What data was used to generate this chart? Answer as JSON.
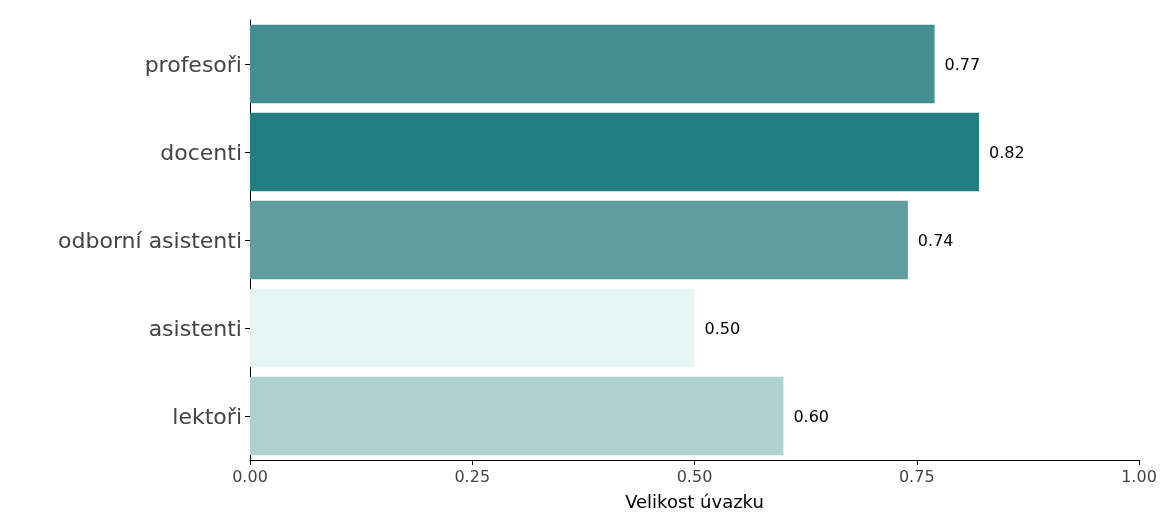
{
  "chart_data": {
    "type": "bar",
    "orientation": "horizontal",
    "xlabel": "Velikost úvazku",
    "categories": [
      "profesoři",
      "docenti",
      "odborní asistenti",
      "asistenti",
      "lektoři"
    ],
    "values": [
      0.77,
      0.82,
      0.74,
      0.5,
      0.6
    ],
    "colors": [
      "#448f8f",
      "#217e80",
      "#5f9d9e",
      "#e6f6f2",
      "#afd1d0"
    ],
    "xlim": [
      0,
      1
    ],
    "xticks": [
      {
        "value": 0,
        "label": "0.00"
      },
      {
        "value": 0.25,
        "label": "0.25"
      },
      {
        "value": 0.5,
        "label": "0.50"
      },
      {
        "value": 0.75,
        "label": "0.75"
      },
      {
        "value": 1,
        "label": "1.00"
      }
    ],
    "value_labels": [
      "0.77",
      "0.82",
      "0.74",
      "0.50",
      "0.60"
    ]
  }
}
